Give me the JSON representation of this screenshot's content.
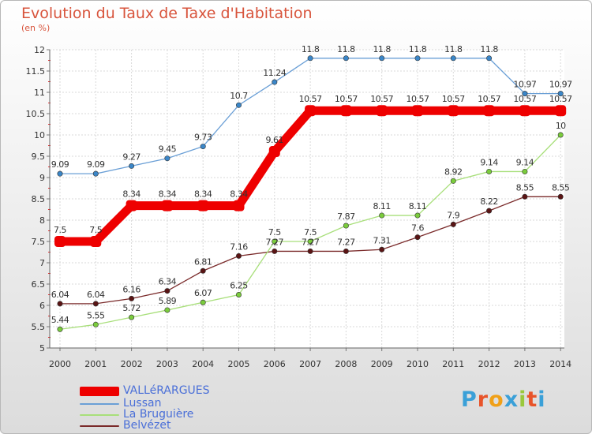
{
  "title": "Evolution du Taux de Taxe d'Habitation",
  "unit_label": "(en %)",
  "logo": {
    "text": "Proxiti",
    "letter_colors": [
      "#3aa0d8",
      "#e8542a",
      "#f0a018",
      "#3aa0d8",
      "#9ac83c",
      "#e8542a",
      "#3aa0d8"
    ]
  },
  "chart_data": {
    "type": "line",
    "title": "Evolution du Taux de Taxe d'Habitation",
    "ylabel": "(en %)",
    "xlabel": "",
    "x": [
      "2000",
      "2001",
      "2002",
      "2003",
      "2004",
      "2005",
      "2006",
      "2007",
      "2008",
      "2009",
      "2010",
      "2011",
      "2012",
      "2013",
      "2014"
    ],
    "ylim": [
      5,
      12
    ],
    "yticks": [
      "5",
      "5.5",
      "6",
      "6.5",
      "7",
      "7.5",
      "8",
      "8.5",
      "9",
      "9.5",
      "10",
      "10.5",
      "11",
      "11.5",
      "12"
    ],
    "grid": true,
    "legend_position": "bottom-left",
    "series": [
      {
        "name": "VALLéRARGUES",
        "color": "#ee0000",
        "emphasis": true,
        "values": [
          7.5,
          7.5,
          8.34,
          8.34,
          8.34,
          8.34,
          9.61,
          10.57,
          10.57,
          10.57,
          10.57,
          10.57,
          10.57,
          10.57,
          10.57
        ],
        "labels": [
          "7.5",
          "7.5",
          "8.34",
          "8.34",
          "8.34",
          "8.34",
          "9.61",
          "10.57",
          "10.57",
          "10.57",
          "10.57",
          "10.57",
          "10.57",
          "10.57",
          "10.57"
        ]
      },
      {
        "name": "Lussan",
        "color": "#6a9fd6",
        "marker": "#3a86c8",
        "values": [
          9.09,
          9.09,
          9.27,
          9.45,
          9.73,
          10.7,
          11.24,
          11.8,
          11.8,
          11.8,
          11.8,
          11.8,
          11.8,
          10.97,
          10.97
        ],
        "labels": [
          "9.09",
          "9.09",
          "9.27",
          "9.45",
          "9.73",
          "10.7",
          "11.24",
          "11.8",
          "11.8",
          "11.8",
          "11.8",
          "11.8",
          "11.8",
          "10.97",
          "10.97"
        ]
      },
      {
        "name": "La Bruguière",
        "color": "#a8df7a",
        "marker": "#7acc3c",
        "values": [
          5.44,
          5.55,
          5.72,
          5.89,
          6.07,
          6.25,
          7.5,
          7.5,
          7.87,
          8.11,
          8.11,
          8.92,
          9.14,
          9.14,
          10
        ],
        "labels": [
          "5.44",
          "5.55",
          "5.72",
          "5.89",
          "6.07",
          "6.25",
          "7.5",
          "7.5",
          "7.87",
          "8.11",
          "8.11",
          "8.92",
          "9.14",
          "9.14",
          "10"
        ]
      },
      {
        "name": "Belvézet",
        "color": "#7a2a2a",
        "marker": "#5a1414",
        "values": [
          6.04,
          6.04,
          6.16,
          6.34,
          6.81,
          7.16,
          7.27,
          7.27,
          7.27,
          7.31,
          7.6,
          7.9,
          8.22,
          8.55,
          8.55
        ],
        "labels": [
          "6.04",
          "6.04",
          "6.16",
          "6.34",
          "6.81",
          "7.16",
          "7.27",
          "7.27",
          "7.27",
          "7.31",
          "7.6",
          "7.9",
          "8.22",
          "8.55",
          "8.55"
        ]
      }
    ]
  }
}
